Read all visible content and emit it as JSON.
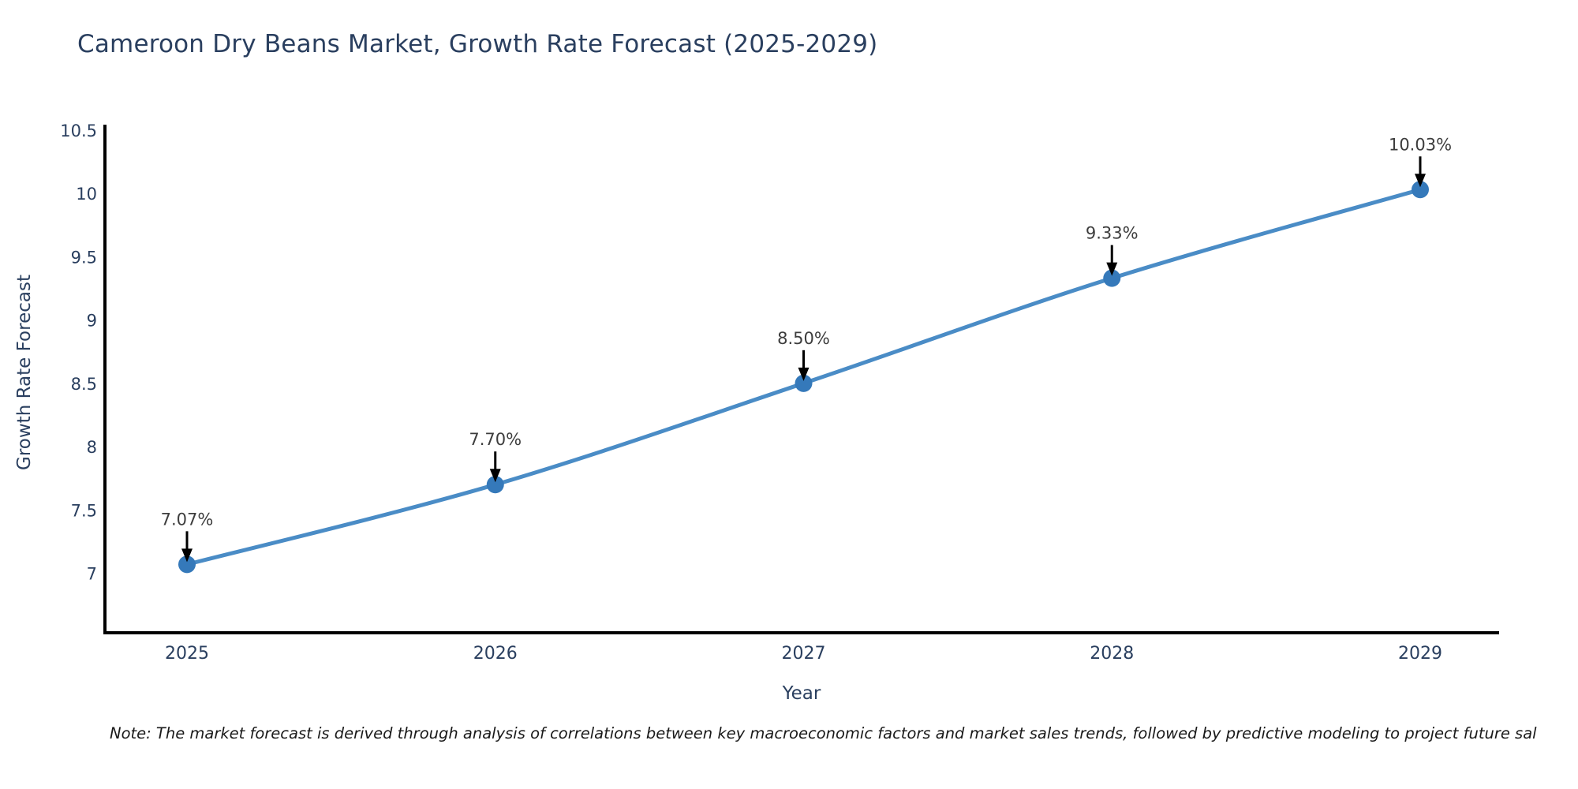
{
  "title": "Cameroon Dry Beans Market, Growth Rate Forecast (2025-2029)",
  "note": "Note: The market forecast is derived through analysis of correlations between key macroeconomic factors and market sales trends, followed by predictive modeling to project future sal",
  "colors": {
    "line": "#4a8cc6",
    "marker": "#3579ba",
    "axis": "#000000",
    "title_text": "#2a3f5f",
    "tick_text": "#2a3f5f",
    "annotation_text": "#3d3d3d",
    "arrow": "#000000",
    "background": "#ffffff"
  },
  "chart_data": {
    "type": "line",
    "title": "Cameroon Dry Beans Market, Growth Rate Forecast (2025-2029)",
    "xlabel": "Year",
    "ylabel": "Growth Rate Forecast",
    "categories": [
      "2025",
      "2026",
      "2027",
      "2028",
      "2029"
    ],
    "values": [
      7.07,
      7.7,
      8.5,
      9.33,
      10.03
    ],
    "point_labels": [
      "7.07%",
      "7.70%",
      "8.50%",
      "9.33%",
      "10.03%"
    ],
    "yticks": [
      7,
      7.5,
      8,
      8.5,
      9,
      9.5,
      10,
      10.5
    ],
    "ylim": [
      6.53,
      10.53
    ],
    "grid": false,
    "legend": "none",
    "line_shape": "spline",
    "marker": "circle",
    "annotations": "value labels with downward arrows above each point"
  }
}
